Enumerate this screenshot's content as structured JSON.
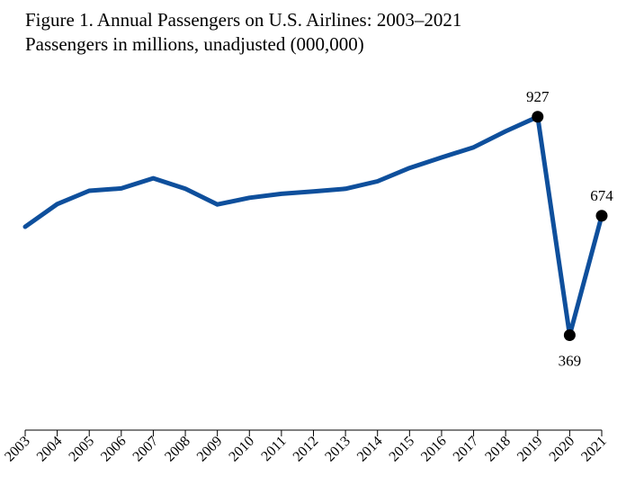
{
  "chart_data": {
    "type": "line",
    "title": "Figure 1. Annual Passengers on U.S. Airlines: 2003–2021",
    "subtitle": "Passengers in millions, unadjusted (000,000)",
    "xlabel": "",
    "ylabel": "",
    "categories": [
      "2003",
      "2004",
      "2005",
      "2006",
      "2007",
      "2008",
      "2009",
      "2010",
      "2011",
      "2012",
      "2013",
      "2014",
      "2015",
      "2016",
      "2017",
      "2018",
      "2019",
      "2020",
      "2021"
    ],
    "series": [
      {
        "values": [
          646,
          704,
          738,
          744,
          770,
          743,
          703,
          720,
          730,
          736,
          743,
          762,
          796,
          823,
          849,
          890,
          927,
          369,
          674
        ],
        "color": "#0e4f9c"
      }
    ],
    "ylim": [
      0,
      1100
    ],
    "grid": false,
    "legend": "none",
    "annotations": [
      {
        "index": 16,
        "text": "927",
        "position": "above"
      },
      {
        "index": 17,
        "text": "369",
        "position": "below"
      },
      {
        "index": 18,
        "text": "674",
        "position": "above"
      }
    ]
  }
}
